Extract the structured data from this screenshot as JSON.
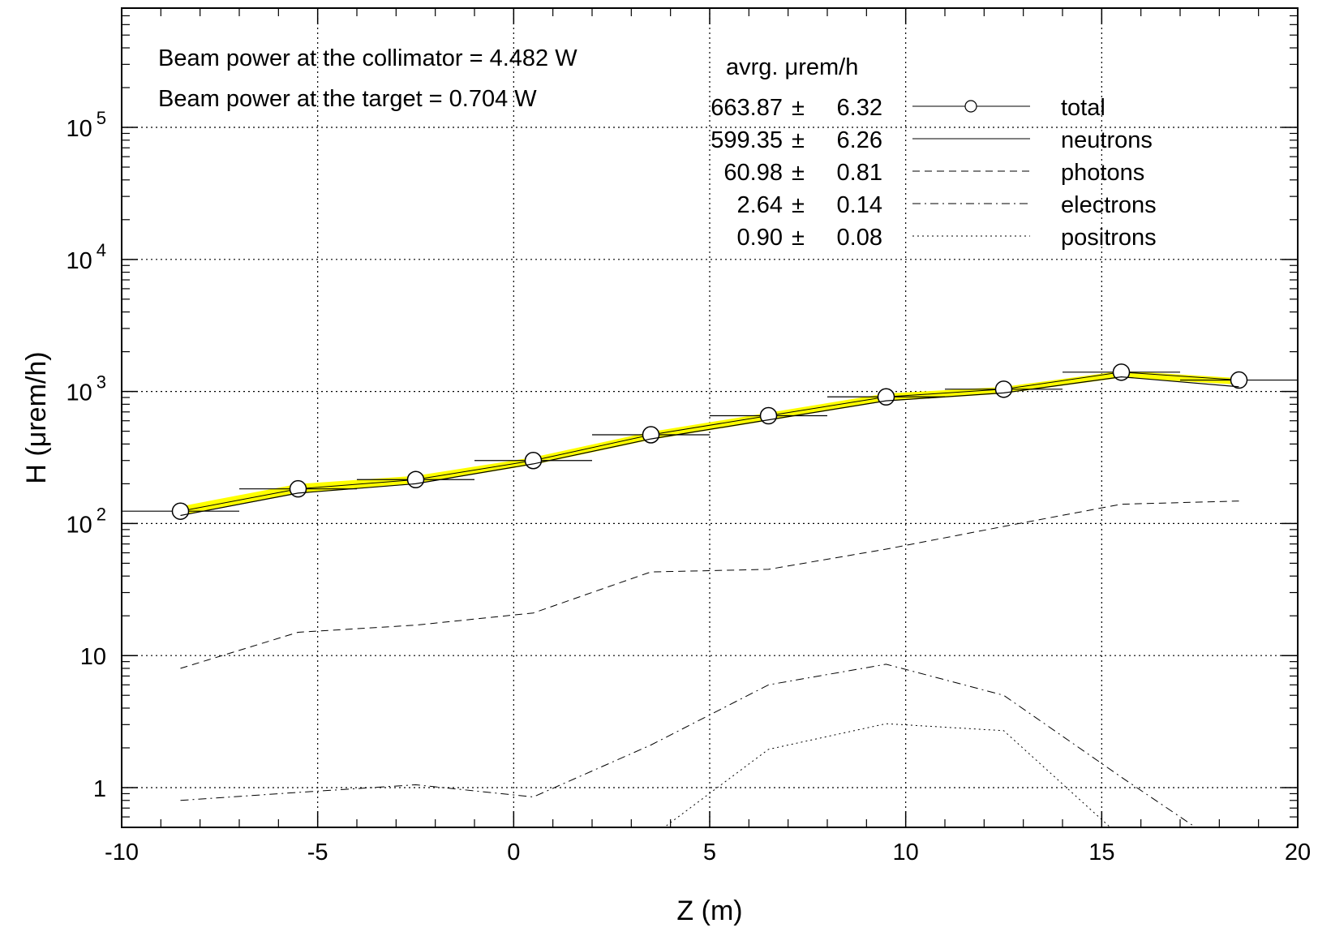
{
  "chart_data": {
    "type": "line",
    "xlabel": "Z (m)",
    "ylabel": "H (μrem/h)",
    "xlim": [
      -10,
      20
    ],
    "ylim": [
      0.5,
      800000
    ],
    "yscale": "log",
    "grid": true,
    "x_tick_labels": [
      "-10",
      "-5",
      "0",
      "5",
      "10",
      "15",
      "20"
    ],
    "y_tick_labels": [
      {
        "value": 1,
        "base": "1",
        "exp": ""
      },
      {
        "value": 10,
        "base": "10",
        "exp": ""
      },
      {
        "value": 100,
        "base": "10",
        "exp": "2"
      },
      {
        "value": 1000,
        "base": "10",
        "exp": "3"
      },
      {
        "value": 10000,
        "base": "10",
        "exp": "4"
      },
      {
        "value": 100000,
        "base": "10",
        "exp": "5"
      }
    ],
    "annotations": [
      "Beam power at the collimator =  4.482 W",
      "Beam power at the target = 0.704 W"
    ],
    "legend_header": "avrg. μrem/h",
    "legend_placement": "top-right",
    "x_bin_edges": [
      -10,
      -7,
      -4,
      -1,
      2,
      5,
      8,
      11,
      14,
      17,
      20
    ],
    "x": [
      -8.5,
      -5.5,
      -2.5,
      0.5,
      3.5,
      6.5,
      9.5,
      12.5,
      15.5,
      18.5
    ],
    "band": {
      "color": "#ffff00",
      "lower": [
        117,
        172,
        203,
        285,
        440,
        615,
        860,
        985,
        1300,
        1150
      ],
      "upper": [
        132,
        195,
        225,
        310,
        485,
        675,
        945,
        1060,
        1400,
        1235
      ]
    },
    "series": [
      {
        "name": "total",
        "style": "circle",
        "avg": "663.87",
        "err": "6.32",
        "values": [
          124,
          183,
          215,
          300,
          470,
          655,
          910,
          1040,
          1400,
          1220
        ]
      },
      {
        "name": "neutrons",
        "style": "solid",
        "avg": "599.35",
        "err": "6.26",
        "values": [
          115,
          170,
          200,
          283,
          437,
          610,
          850,
          975,
          1290,
          1085
        ]
      },
      {
        "name": "photons",
        "style": "dashed",
        "avg": "60.98",
        "err": "0.81",
        "values": [
          8,
          15,
          17,
          21,
          43,
          45,
          64,
          95,
          140,
          148
        ]
      },
      {
        "name": "electrons",
        "style": "dashdot",
        "avg": "2.64",
        "err": "0.14",
        "values": [
          0.8,
          0.92,
          1.05,
          0.85,
          2.1,
          6,
          8.6,
          5,
          1.2,
          0.3
        ]
      },
      {
        "name": "positrons",
        "style": "dotted",
        "values_note": "",
        "avg": "0.90",
        "err": "0.08",
        "values": [
          null,
          null,
          null,
          null,
          0.42,
          1.95,
          3.05,
          2.7,
          0.42,
          null
        ]
      }
    ]
  }
}
